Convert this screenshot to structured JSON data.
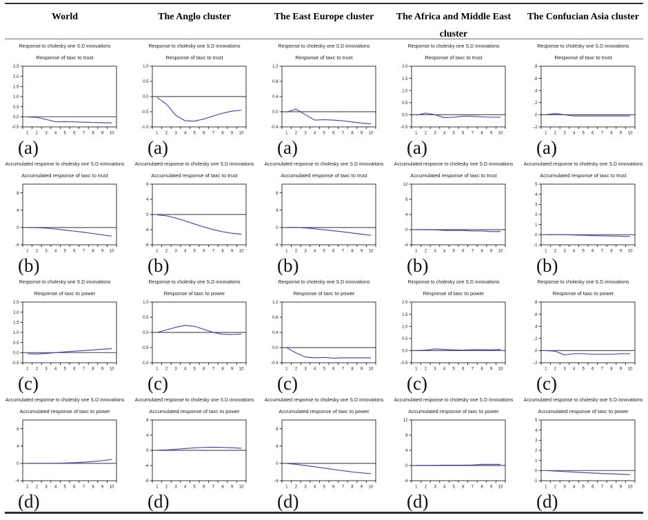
{
  "figure": {
    "line_color": "#4747cf",
    "zero_line_color": "#555555",
    "box_color": "#000000",
    "tick_text_color": "#1a1a1a"
  },
  "columns": [
    "World",
    "The Anglo cluster",
    "The East Europe cluster",
    "The Africa and Middle East cluster",
    "The Confucian Asia cluster"
  ],
  "rows": [
    {
      "label": "(a)",
      "top_title": "Response to cholesky one S.D innovations",
      "subtitle": "Response of taxc to trust"
    },
    {
      "label": "(b)",
      "top_title": "Accumulated response to cholesky one S.D innovations",
      "subtitle": "Accumulated response of taxc to trust"
    },
    {
      "label": "(c)",
      "top_title": "Response to cholesky one S.D innovations",
      "subtitle": "Response of taxc to power"
    },
    {
      "label": "(d)",
      "top_title": "Accumulated response to cholesky one S.D innovations",
      "subtitle": "Accumulated response of taxc to power"
    }
  ],
  "xtick_labels": [
    "1",
    "2",
    "3",
    "4",
    "5",
    "6",
    "7",
    "8",
    "9",
    "10"
  ],
  "chart_data": [
    {
      "type": "line",
      "column": "World",
      "panel_label": "(a)",
      "top_title": "Response to cholesky one S.D innovations",
      "subtitle": "Response of taxc to trust",
      "x": [
        1,
        2,
        3,
        4,
        5,
        6,
        7,
        8,
        9,
        10
      ],
      "values": [
        -0.01,
        -0.03,
        -0.13,
        -0.25,
        -0.24,
        -0.25,
        -0.27,
        -0.28,
        -0.29,
        -0.3
      ],
      "ylim": [
        -0.5,
        2.5
      ],
      "ytick_values": [
        2.5,
        2.0,
        1.5,
        1.0,
        0.5,
        0.0,
        -0.5
      ],
      "ytick_labels": [
        "2.5",
        "2.0",
        "1.5",
        "1.0",
        "0.5",
        "0.0",
        "-0.5"
      ]
    },
    {
      "type": "line",
      "column": "The Anglo cluster",
      "panel_label": "(a)",
      "top_title": "Response to cholesky one S.D innovations",
      "subtitle": "Response of taxc to trust",
      "x": [
        1,
        2,
        3,
        4,
        5,
        6,
        7,
        8,
        9,
        10
      ],
      "values": [
        -0.03,
        -0.25,
        -0.62,
        -0.8,
        -0.81,
        -0.74,
        -0.64,
        -0.55,
        -0.48,
        -0.45
      ],
      "ylim": [
        -1.0,
        1.0
      ],
      "ytick_values": [
        1.0,
        0.5,
        0.0,
        -0.5,
        -1.0
      ],
      "ytick_labels": [
        "1.0",
        "0.5",
        "0.0",
        "-0.5",
        "-1.0"
      ]
    },
    {
      "type": "line",
      "column": "The East Europe cluster",
      "panel_label": "(a)",
      "top_title": "Response to cholesky one S.D innovations",
      "subtitle": "Response of taxc to trust",
      "x": [
        1,
        2,
        3,
        4,
        5,
        6,
        7,
        8,
        9,
        10
      ],
      "values": [
        -0.01,
        0.07,
        -0.08,
        -0.22,
        -0.21,
        -0.22,
        -0.24,
        -0.27,
        -0.3,
        -0.32
      ],
      "ylim": [
        -0.4,
        1.2
      ],
      "ytick_values": [
        1.2,
        0.8,
        0.4,
        0.0,
        -0.4
      ],
      "ytick_labels": [
        "1.2",
        "0.8",
        "0.4",
        "0.0",
        "-0.4"
      ]
    },
    {
      "type": "line",
      "column": "The Africa and Middle East cluster",
      "panel_label": "(a)",
      "top_title": "Response to cholesky one S.D innovations",
      "subtitle": "Response of taxc to trust",
      "x": [
        1,
        2,
        3,
        4,
        5,
        6,
        7,
        8,
        9,
        10
      ],
      "values": [
        -0.02,
        0.07,
        0.0,
        -0.12,
        -0.1,
        -0.06,
        -0.06,
        -0.09,
        -0.1,
        -0.1
      ],
      "ylim": [
        -0.5,
        2.0
      ],
      "ytick_values": [
        2.0,
        1.5,
        1.0,
        0.5,
        0.0,
        -0.5
      ],
      "ytick_labels": [
        "2.0",
        "1.5",
        "1.0",
        "0.5",
        "0.0",
        "-0.5"
      ]
    },
    {
      "type": "line",
      "column": "The Confucian Asia cluster",
      "panel_label": "(a)",
      "top_title": "Response to cholesky one S.D innovations",
      "subtitle": "Response of taxc to trust",
      "x": [
        1,
        2,
        3,
        4,
        5,
        6,
        7,
        8,
        9,
        10
      ],
      "values": [
        0.0,
        0.02,
        0.0,
        -0.02,
        -0.02,
        -0.02,
        -0.02,
        -0.02,
        -0.02,
        -0.02
      ],
      "ylim": [
        -0.2,
        0.8
      ],
      "ytick_values": [
        0.8,
        0.6,
        0.4,
        0.2,
        0.0,
        -0.2
      ],
      "ytick_labels": [
        ".8",
        ".6",
        ".4",
        ".2",
        ".0",
        "-.2"
      ]
    },
    {
      "type": "line",
      "column": "World",
      "panel_label": "(b)",
      "top_title": "Accumulated response to cholesky one S.D innovations",
      "subtitle": "Accumulated response of taxc to trust",
      "x": [
        1,
        2,
        3,
        4,
        5,
        6,
        7,
        8,
        9,
        10
      ],
      "values": [
        0.0,
        -0.05,
        -0.15,
        -0.35,
        -0.6,
        -0.85,
        -1.1,
        -1.4,
        -1.7,
        -2.0
      ],
      "ylim": [
        -4,
        10
      ],
      "ytick_values": [
        8,
        4,
        0,
        -4
      ],
      "ytick_labels": [
        "8",
        "4",
        "0",
        "-4"
      ]
    },
    {
      "type": "line",
      "column": "The Anglo cluster",
      "panel_label": "(b)",
      "top_title": "Accumulated response to cholesky one S.D innovations",
      "subtitle": "Accumulated response of taxc to trust",
      "x": [
        1,
        2,
        3,
        4,
        5,
        6,
        7,
        8,
        9,
        10
      ],
      "values": [
        -0.1,
        -0.35,
        -0.95,
        -1.7,
        -2.5,
        -3.3,
        -4.0,
        -4.55,
        -4.95,
        -5.2
      ],
      "ylim": [
        -8,
        8
      ],
      "ytick_values": [
        8,
        4,
        0,
        -4,
        -8
      ],
      "ytick_labels": [
        "8",
        "4",
        "0",
        "-4",
        "-8"
      ]
    },
    {
      "type": "line",
      "column": "The East Europe cluster",
      "panel_label": "(b)",
      "top_title": "Accumulated response to cholesky one S.D innovations",
      "subtitle": "Accumulated response of taxc to trust",
      "x": [
        1,
        2,
        3,
        4,
        5,
        6,
        7,
        8,
        9,
        10
      ],
      "values": [
        0.0,
        0.05,
        -0.1,
        -0.3,
        -0.52,
        -0.76,
        -1.0,
        -1.28,
        -1.55,
        -1.8
      ],
      "ylim": [
        -4,
        10
      ],
      "ytick_values": [
        8,
        4,
        0,
        -4
      ],
      "ytick_labels": [
        "8",
        "4",
        "0",
        "-4"
      ]
    },
    {
      "type": "line",
      "column": "The Africa and Middle East cluster",
      "panel_label": "(b)",
      "top_title": "Accumulated response to cholesky one S.D innovations",
      "subtitle": "Accumulated response of taxc to trust",
      "x": [
        1,
        2,
        3,
        4,
        5,
        6,
        7,
        8,
        9,
        10
      ],
      "values": [
        0.0,
        0.0,
        -0.05,
        -0.2,
        -0.2,
        -0.2,
        -0.35,
        -0.35,
        -0.5,
        -0.5
      ],
      "ylim": [
        -4,
        12
      ],
      "ytick_values": [
        12,
        8,
        4,
        0,
        -4
      ],
      "ytick_labels": [
        "12",
        "8",
        "4",
        "0",
        "-4"
      ]
    },
    {
      "type": "line",
      "column": "The Confucian Asia cluster",
      "panel_label": "(b)",
      "top_title": "Accumulated response to cholesky one S.D innovations",
      "subtitle": "Accumulated response of taxc to trust",
      "x": [
        1,
        2,
        3,
        4,
        5,
        6,
        7,
        8,
        9,
        10
      ],
      "values": [
        0.0,
        0.01,
        0.0,
        -0.03,
        -0.06,
        -0.09,
        -0.11,
        -0.13,
        -0.15,
        -0.17
      ],
      "ylim": [
        -1,
        5
      ],
      "ytick_values": [
        5,
        4,
        3,
        2,
        1,
        0,
        -1
      ],
      "ytick_labels": [
        "5",
        "4",
        "3",
        "2",
        "1",
        "0",
        "-1"
      ]
    },
    {
      "type": "line",
      "column": "World",
      "panel_label": "(c)",
      "top_title": "Response to cholesky one S.D innovations",
      "subtitle": "Response of taxc to power",
      "x": [
        1,
        2,
        3,
        4,
        5,
        6,
        7,
        8,
        9,
        10
      ],
      "values": [
        -0.05,
        -0.07,
        -0.04,
        0.0,
        0.04,
        0.07,
        0.1,
        0.13,
        0.17,
        0.2
      ],
      "ylim": [
        -0.5,
        2.5
      ],
      "ytick_values": [
        2.5,
        2.0,
        1.5,
        1.0,
        0.5,
        0.0,
        -0.5
      ],
      "ytick_labels": [
        "2.5",
        "2.0",
        "1.5",
        "1.0",
        "0.5",
        "0.0",
        "-0.5"
      ]
    },
    {
      "type": "line",
      "column": "The Anglo cluster",
      "panel_label": "(c)",
      "top_title": "Response to cholesky one S.D innovations",
      "subtitle": "Response of taxc to power",
      "x": [
        1,
        2,
        3,
        4,
        5,
        6,
        7,
        8,
        9,
        10
      ],
      "values": [
        0.0,
        0.08,
        0.17,
        0.23,
        0.2,
        0.1,
        0.0,
        -0.06,
        -0.07,
        -0.05
      ],
      "ylim": [
        -1.0,
        1.0
      ],
      "ytick_values": [
        1.0,
        0.5,
        0.0,
        -0.5,
        -1.0
      ],
      "ytick_labels": [
        "1.0",
        "0.5",
        "0.0",
        "-0.5",
        "-1.0"
      ]
    },
    {
      "type": "line",
      "column": "The East Europe cluster",
      "panel_label": "(c)",
      "top_title": "Response to cholesky one S.D innovations",
      "subtitle": "Response of taxc to power",
      "x": [
        1,
        2,
        3,
        4,
        5,
        6,
        7,
        8,
        9,
        10
      ],
      "values": [
        0.0,
        -0.14,
        -0.25,
        -0.27,
        -0.26,
        -0.28,
        -0.27,
        -0.27,
        -0.27,
        -0.27
      ],
      "ylim": [
        -0.4,
        1.2
      ],
      "ytick_values": [
        1.2,
        0.8,
        0.4,
        0.0,
        -0.4
      ],
      "ytick_labels": [
        "1.2",
        "0.8",
        "0.4",
        "0.0",
        "-0.4"
      ]
    },
    {
      "type": "line",
      "column": "The Africa and Middle East cluster",
      "panel_label": "(c)",
      "top_title": "Response to cholesky one S.D innovations",
      "subtitle": "Response of taxc to power",
      "x": [
        1,
        2,
        3,
        4,
        5,
        6,
        7,
        8,
        9,
        10
      ],
      "values": [
        0.0,
        0.02,
        0.07,
        0.05,
        0.03,
        0.02,
        0.04,
        0.04,
        0.03,
        0.05
      ],
      "ylim": [
        -0.5,
        2.0
      ],
      "ytick_values": [
        2.0,
        1.5,
        1.0,
        0.5,
        0.0,
        -0.5
      ],
      "ytick_labels": [
        "2.0",
        "1.5",
        "1.0",
        "0.5",
        "0.0",
        "-0.5"
      ]
    },
    {
      "type": "line",
      "column": "The Confucian Asia cluster",
      "panel_label": "(c)",
      "top_title": "Response to cholesky one S.D innovations",
      "subtitle": "Response of taxc to power",
      "x": [
        1,
        2,
        3,
        4,
        5,
        6,
        7,
        8,
        9,
        10
      ],
      "values": [
        0.0,
        -0.01,
        -0.07,
        -0.05,
        -0.05,
        -0.06,
        -0.06,
        -0.06,
        -0.05,
        -0.05
      ],
      "ylim": [
        -0.2,
        0.8
      ],
      "ytick_values": [
        0.8,
        0.6,
        0.4,
        0.2,
        0.0,
        -0.2
      ],
      "ytick_labels": [
        ".8",
        ".6",
        ".4",
        ".2",
        ".0",
        "-.2"
      ]
    },
    {
      "type": "line",
      "column": "World",
      "panel_label": "(d)",
      "top_title": "Accumulated response to cholesky one S.D innovations",
      "subtitle": "Accumulated response of taxc to power",
      "x": [
        1,
        2,
        3,
        4,
        5,
        6,
        7,
        8,
        9,
        10
      ],
      "values": [
        0.0,
        0.0,
        0.0,
        0.02,
        0.08,
        0.15,
        0.27,
        0.42,
        0.62,
        0.9
      ],
      "ylim": [
        -4,
        10
      ],
      "ytick_values": [
        8,
        4,
        0,
        -4
      ],
      "ytick_labels": [
        "8",
        "4",
        "0",
        "-4"
      ]
    },
    {
      "type": "line",
      "column": "The Anglo cluster",
      "panel_label": "(d)",
      "top_title": "Accumulated response to cholesky one S.D innovations",
      "subtitle": "Accumulated response of taxc to power",
      "x": [
        1,
        2,
        3,
        4,
        5,
        6,
        7,
        8,
        9,
        10
      ],
      "values": [
        0.02,
        0.12,
        0.28,
        0.48,
        0.65,
        0.78,
        0.82,
        0.78,
        0.68,
        0.55
      ],
      "ylim": [
        -8,
        8
      ],
      "ytick_values": [
        8,
        4,
        0,
        -4,
        -8
      ],
      "ytick_labels": [
        "8",
        "4",
        "0",
        "-4",
        "-8"
      ]
    },
    {
      "type": "line",
      "column": "The East Europe cluster",
      "panel_label": "(d)",
      "top_title": "Accumulated response to cholesky one S.D innovations",
      "subtitle": "Accumulated response of taxc to power",
      "x": [
        1,
        2,
        3,
        4,
        5,
        6,
        7,
        8,
        9,
        10
      ],
      "values": [
        -0.02,
        -0.22,
        -0.5,
        -0.8,
        -1.1,
        -1.4,
        -1.7,
        -1.98,
        -2.2,
        -2.4
      ],
      "ylim": [
        -4,
        10
      ],
      "ytick_values": [
        8,
        4,
        0,
        -4
      ],
      "ytick_labels": [
        "8",
        "4",
        "0",
        "-4"
      ]
    },
    {
      "type": "line",
      "column": "The Africa and Middle East cluster",
      "panel_label": "(d)",
      "top_title": "Accumulated response to cholesky one S.D innovations",
      "subtitle": "Accumulated response of taxc to power",
      "x": [
        1,
        2,
        3,
        4,
        5,
        6,
        7,
        8,
        9,
        10
      ],
      "values": [
        0.05,
        0.05,
        0.05,
        0.1,
        0.1,
        0.1,
        0.15,
        0.3,
        0.3,
        0.3
      ],
      "ylim": [
        -4,
        12
      ],
      "ytick_values": [
        12,
        8,
        4,
        0,
        -4
      ],
      "ytick_labels": [
        "12",
        "8",
        "4",
        "0",
        "-4"
      ]
    },
    {
      "type": "line",
      "column": "The Confucian Asia cluster",
      "panel_label": "(d)",
      "top_title": "Accumulated response to cholesky one S.D innovations",
      "subtitle": "Accumulated response of taxc to power",
      "x": [
        1,
        2,
        3,
        4,
        5,
        6,
        7,
        8,
        9,
        10
      ],
      "values": [
        0.0,
        -0.05,
        -0.1,
        -0.15,
        -0.2,
        -0.24,
        -0.29,
        -0.32,
        -0.36,
        -0.4
      ],
      "ylim": [
        -1,
        5
      ],
      "ytick_values": [
        5,
        4,
        3,
        2,
        1,
        0,
        -1
      ],
      "ytick_labels": [
        "5",
        "4",
        "3",
        "2",
        "1",
        "0",
        "-1"
      ]
    }
  ]
}
